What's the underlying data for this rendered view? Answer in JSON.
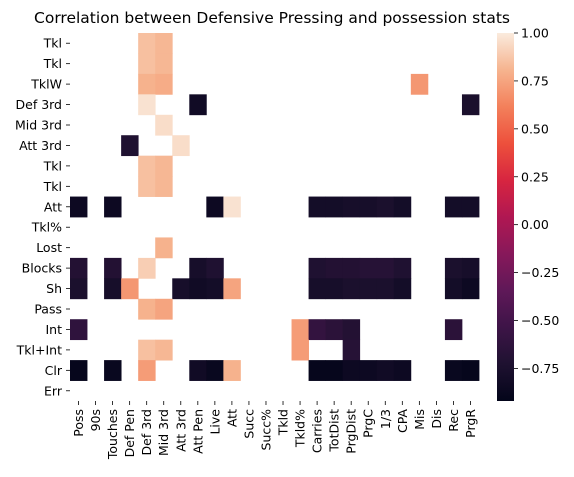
{
  "chart_data": {
    "type": "heatmap",
    "title": "Correlation between Defensive Pressing and possession stats",
    "xlabel": "",
    "ylabel": "",
    "row_labels": [
      "Tkl",
      "Tkl",
      "TklW",
      "Def 3rd",
      "Mid 3rd",
      "Att 3rd",
      "Tkl",
      "Tkl",
      "Att",
      "Tkl%",
      "Lost",
      "Blocks",
      "Sh",
      "Pass",
      "Int",
      "Tkl+Int",
      "Clr",
      "Err"
    ],
    "col_labels": [
      "Poss",
      "90s",
      "Touches",
      "Def Pen",
      "Def 3rd",
      "Mid 3rd",
      "Att 3rd",
      "Att Pen",
      "Live",
      "Att",
      "Succ",
      "Succ%",
      "Tkld",
      "Tkld%",
      "Carries",
      "TotDist",
      "PrgDist",
      "PrgC",
      "1/3",
      "CPA",
      "Mis",
      "Dis",
      "Rec",
      "PrgR"
    ],
    "values": [
      [
        null,
        null,
        null,
        null,
        0.85,
        0.82,
        null,
        null,
        null,
        null,
        null,
        null,
        null,
        null,
        null,
        null,
        null,
        null,
        null,
        null,
        null,
        null,
        null,
        null
      ],
      [
        null,
        null,
        null,
        null,
        0.85,
        0.82,
        null,
        null,
        null,
        null,
        null,
        null,
        null,
        null,
        null,
        null,
        null,
        null,
        null,
        null,
        null,
        null,
        null,
        null
      ],
      [
        null,
        null,
        null,
        null,
        0.8,
        0.78,
        null,
        null,
        null,
        null,
        null,
        null,
        null,
        null,
        null,
        null,
        null,
        null,
        null,
        null,
        0.7,
        null,
        null,
        null
      ],
      [
        null,
        null,
        null,
        null,
        0.97,
        null,
        null,
        -0.82,
        null,
        null,
        null,
        null,
        null,
        null,
        null,
        null,
        null,
        null,
        null,
        null,
        null,
        null,
        null,
        -0.75
      ],
      [
        null,
        null,
        null,
        null,
        null,
        0.95,
        null,
        null,
        null,
        null,
        null,
        null,
        null,
        null,
        null,
        null,
        null,
        null,
        null,
        null,
        null,
        null,
        null,
        null
      ],
      [
        null,
        null,
        null,
        -0.72,
        null,
        null,
        0.95,
        null,
        null,
        null,
        null,
        null,
        null,
        null,
        null,
        null,
        null,
        null,
        null,
        null,
        null,
        null,
        null,
        null
      ],
      [
        null,
        null,
        null,
        null,
        0.85,
        0.82,
        null,
        null,
        null,
        null,
        null,
        null,
        null,
        null,
        null,
        null,
        null,
        null,
        null,
        null,
        null,
        null,
        null,
        null
      ],
      [
        null,
        null,
        null,
        null,
        0.85,
        0.82,
        null,
        null,
        null,
        null,
        null,
        null,
        null,
        null,
        null,
        null,
        null,
        null,
        null,
        null,
        null,
        null,
        null,
        null
      ],
      [
        -0.85,
        null,
        -0.85,
        null,
        null,
        null,
        null,
        null,
        -0.85,
        0.97,
        null,
        null,
        null,
        null,
        -0.8,
        -0.8,
        -0.78,
        -0.78,
        -0.75,
        -0.8,
        null,
        null,
        -0.8,
        -0.8
      ],
      [
        null,
        null,
        null,
        null,
        null,
        null,
        null,
        null,
        null,
        null,
        null,
        null,
        null,
        null,
        null,
        null,
        null,
        null,
        null,
        null,
        null,
        null,
        null,
        null
      ],
      [
        null,
        null,
        null,
        null,
        null,
        0.8,
        null,
        null,
        null,
        null,
        null,
        null,
        null,
        null,
        null,
        null,
        null,
        null,
        null,
        null,
        null,
        null,
        null,
        null
      ],
      [
        -0.7,
        null,
        -0.7,
        null,
        0.9,
        null,
        null,
        -0.78,
        -0.72,
        null,
        null,
        null,
        null,
        null,
        -0.72,
        -0.7,
        -0.7,
        -0.68,
        -0.68,
        -0.72,
        null,
        null,
        -0.75,
        -0.78
      ],
      [
        -0.75,
        null,
        -0.78,
        0.7,
        null,
        null,
        -0.78,
        -0.82,
        -0.8,
        0.75,
        null,
        null,
        null,
        null,
        -0.78,
        -0.78,
        -0.75,
        -0.75,
        -0.75,
        -0.8,
        null,
        null,
        -0.8,
        -0.85
      ],
      [
        null,
        null,
        null,
        null,
        0.8,
        0.75,
        null,
        null,
        null,
        null,
        null,
        null,
        null,
        null,
        null,
        null,
        null,
        null,
        null,
        null,
        null,
        null,
        null,
        null
      ],
      [
        -0.62,
        null,
        null,
        null,
        null,
        null,
        null,
        null,
        null,
        null,
        null,
        null,
        null,
        0.72,
        -0.6,
        -0.65,
        -0.7,
        null,
        null,
        null,
        null,
        null,
        -0.65,
        null
      ],
      [
        null,
        null,
        null,
        null,
        0.85,
        0.82,
        null,
        null,
        null,
        null,
        null,
        null,
        null,
        0.72,
        null,
        null,
        -0.68,
        null,
        null,
        null,
        null,
        null,
        null,
        null
      ],
      [
        -0.9,
        null,
        -0.88,
        null,
        0.72,
        null,
        null,
        -0.82,
        -0.88,
        0.8,
        null,
        null,
        null,
        null,
        -0.9,
        -0.9,
        -0.85,
        -0.85,
        -0.82,
        -0.85,
        null,
        null,
        -0.88,
        -0.9
      ],
      [
        null,
        null,
        null,
        null,
        null,
        null,
        null,
        null,
        null,
        null,
        null,
        null,
        null,
        null,
        null,
        null,
        null,
        null,
        null,
        null,
        null,
        null,
        null,
        null
      ]
    ],
    "vmin": -0.92,
    "vmax": 1.0,
    "colorbar_ticks": [
      1.0,
      0.75,
      0.5,
      0.25,
      0.0,
      -0.25,
      -0.5,
      -0.75
    ],
    "colorbar_tick_labels": [
      "1.00",
      "0.75",
      "0.50",
      "0.25",
      "0.00",
      "−0.25",
      "−0.50",
      "−0.75"
    ],
    "colormap": "rocket",
    "grid": false,
    "colorbar_placement": "right"
  }
}
